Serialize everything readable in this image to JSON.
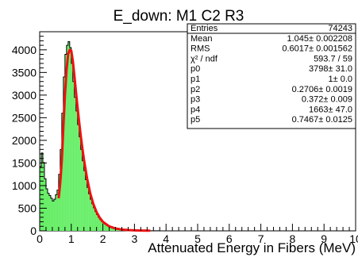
{
  "chart_data": {
    "type": "area",
    "title": "E_down: M1 C2 R3",
    "xlabel": "Attenuated Energy in Fibers (MeV)",
    "ylabel": "",
    "xlim": [
      0,
      10
    ],
    "ylim": [
      0,
      4400
    ],
    "grid": false,
    "x_ticks": [
      "0",
      "1",
      "2",
      "3",
      "4",
      "5",
      "6",
      "7",
      "8",
      "9",
      "10"
    ],
    "y_ticks": [
      "0",
      "500",
      "1000",
      "1500",
      "2000",
      "2500",
      "3000",
      "3500",
      "4000"
    ],
    "colors": {
      "fill": "#66ee66",
      "outline": "#000000",
      "fit": "#ee1111"
    },
    "histogram": {
      "name": "E_down",
      "bin_width": 0.05,
      "x": [
        0.025,
        0.075,
        0.125,
        0.175,
        0.225,
        0.275,
        0.325,
        0.375,
        0.425,
        0.475,
        0.525,
        0.575,
        0.625,
        0.675,
        0.725,
        0.775,
        0.825,
        0.875,
        0.925,
        0.975,
        1.025,
        1.075,
        1.125,
        1.175,
        1.225,
        1.275,
        1.325,
        1.375,
        1.425,
        1.475,
        1.525,
        1.575,
        1.625,
        1.675,
        1.725,
        1.775,
        1.825,
        1.875,
        1.925,
        1.975,
        2.025,
        2.075,
        2.125,
        2.175,
        2.225,
        2.275,
        2.325,
        2.375,
        2.425,
        2.475,
        2.525,
        2.575,
        2.625,
        2.675,
        2.725,
        2.775,
        2.825,
        2.875,
        2.925,
        2.975,
        3.025,
        3.075,
        3.125,
        3.175,
        3.225,
        3.275,
        3.325,
        3.375,
        3.425,
        3.475,
        3.525,
        3.575,
        3.625,
        3.675,
        3.725,
        3.775,
        3.825,
        3.875,
        3.925,
        3.975
      ],
      "values": [
        1420,
        1720,
        1510,
        1150,
        930,
        830,
        780,
        720,
        660,
        700,
        800,
        900,
        1250,
        1800,
        2600,
        3400,
        3900,
        4100,
        4180,
        4050,
        3700,
        3300,
        2950,
        2650,
        2350,
        2080,
        1800,
        1550,
        1330,
        1130,
        960,
        820,
        700,
        600,
        510,
        430,
        360,
        300,
        250,
        210,
        175,
        150,
        125,
        105,
        90,
        78,
        66,
        56,
        48,
        42,
        36,
        31,
        27,
        23,
        20,
        17,
        15,
        13,
        11,
        10,
        9,
        8,
        7,
        6,
        6,
        5,
        5,
        4,
        4,
        3,
        3,
        3,
        2,
        2,
        2,
        2,
        1,
        1,
        1,
        1
      ]
    },
    "fit": {
      "name": "fit",
      "x": [
        0.6,
        0.65,
        0.7,
        0.75,
        0.8,
        0.85,
        0.9,
        0.95,
        1.0,
        1.05,
        1.1,
        1.15,
        1.2,
        1.25,
        1.3,
        1.35,
        1.4,
        1.5,
        1.6,
        1.7,
        1.8,
        1.9,
        2.0,
        2.2,
        2.4,
        2.6,
        2.8,
        3.0,
        3.2,
        3.4,
        3.5
      ],
      "values": [
        720,
        1050,
        1550,
        2300,
        3000,
        3550,
        3900,
        4000,
        3980,
        3750,
        3420,
        3060,
        2720,
        2400,
        2100,
        1830,
        1580,
        1160,
        830,
        590,
        415,
        290,
        200,
        100,
        52,
        28,
        17,
        11,
        7,
        5,
        4
      ]
    },
    "stats": [
      {
        "label": "Entries",
        "value": "74243"
      },
      {
        "label": "Mean",
        "value": "1.045± 0.002208"
      },
      {
        "label": "RMS",
        "value": "0.6017± 0.001562"
      },
      {
        "label": "χ² / ndf",
        "value": "593.7 / 59"
      },
      {
        "label": "p0",
        "value": "3798± 31.0"
      },
      {
        "label": "p1",
        "value": "1± 0.0"
      },
      {
        "label": "p2",
        "value": "0.2706± 0.0019"
      },
      {
        "label": "p3",
        "value": "0.372± 0.009"
      },
      {
        "label": "p4",
        "value": "1663± 47.0"
      },
      {
        "label": "p5",
        "value": "0.7467± 0.0125"
      }
    ]
  }
}
